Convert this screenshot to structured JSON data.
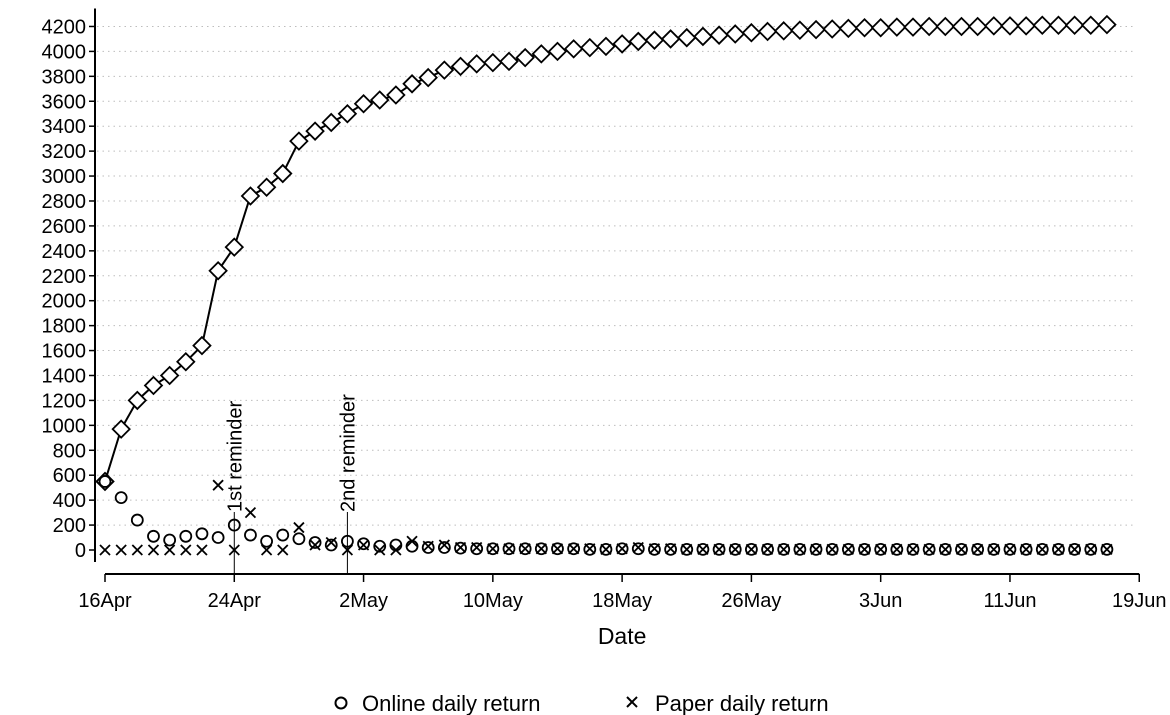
{
  "chart_data": {
    "type": "scatter",
    "title": "",
    "xlabel": "Date",
    "ylabel": "",
    "x_start": "2000-04-16",
    "xlim": [
      "16Apr",
      "19Jun"
    ],
    "ylim": [
      0,
      4200
    ],
    "grid": "horizontal dotted",
    "legend": "bottom",
    "x_ticks": [
      "16Apr",
      "24Apr",
      "2May",
      "10May",
      "18May",
      "26May",
      "3Jun",
      "11Jun",
      "19Jun"
    ],
    "y_ticks": [
      0,
      200,
      400,
      600,
      800,
      1000,
      1200,
      1400,
      1600,
      1800,
      2000,
      2200,
      2400,
      2600,
      2800,
      3000,
      3200,
      3400,
      3600,
      3800,
      4000,
      4200
    ],
    "annotations": [
      {
        "x": "24Apr",
        "text": "1st reminder"
      },
      {
        "x": "1May",
        "text": "2nd reminder"
      }
    ],
    "series": [
      {
        "name": "",
        "marker": "diamond",
        "line": true,
        "x": [
          "16Apr",
          "17Apr",
          "18Apr",
          "19Apr",
          "20Apr",
          "21Apr",
          "22Apr",
          "23Apr",
          "24Apr",
          "25Apr",
          "26Apr",
          "27Apr",
          "28Apr",
          "29Apr",
          "30Apr",
          "1May",
          "2May",
          "3May",
          "4May",
          "5May",
          "6May",
          "7May",
          "8May",
          "9May",
          "10May",
          "11May",
          "12May",
          "13May",
          "14May",
          "15May",
          "16May",
          "17May",
          "18May",
          "19May",
          "20May",
          "21May",
          "22May",
          "23May",
          "24May",
          "25May",
          "26May",
          "27May",
          "28May",
          "29May",
          "30May",
          "31May",
          "1Jun",
          "2Jun",
          "3Jun",
          "4Jun",
          "5Jun",
          "6Jun",
          "7Jun",
          "8Jun",
          "9Jun",
          "10Jun",
          "11Jun",
          "12Jun",
          "13Jun",
          "14Jun",
          "15Jun",
          "16Jun",
          "17Jun"
        ],
        "values": [
          550,
          970,
          1200,
          1320,
          1400,
          1510,
          1640,
          2240,
          2430,
          2840,
          2910,
          3020,
          3280,
          3360,
          3430,
          3500,
          3580,
          3610,
          3650,
          3740,
          3790,
          3850,
          3880,
          3900,
          3910,
          3920,
          3950,
          3980,
          4000,
          4020,
          4030,
          4040,
          4060,
          4080,
          4090,
          4100,
          4110,
          4120,
          4130,
          4140,
          4150,
          4160,
          4165,
          4170,
          4175,
          4180,
          4185,
          4190,
          4190,
          4195,
          4195,
          4200,
          4200,
          4200,
          4200,
          4205,
          4205,
          4205,
          4210,
          4210,
          4210,
          4210,
          4215
        ]
      },
      {
        "name": "Online daily return",
        "marker": "circle",
        "line": false,
        "x": [
          "16Apr",
          "17Apr",
          "18Apr",
          "19Apr",
          "20Apr",
          "21Apr",
          "22Apr",
          "23Apr",
          "24Apr",
          "25Apr",
          "26Apr",
          "27Apr",
          "28Apr",
          "29Apr",
          "30Apr",
          "1May",
          "2May",
          "3May",
          "4May",
          "5May",
          "6May",
          "7May",
          "8May",
          "9May",
          "10May",
          "11May",
          "12May",
          "13May",
          "14May",
          "15May",
          "16May",
          "17May",
          "18May",
          "19May",
          "20May",
          "21May",
          "22May",
          "23May",
          "24May",
          "25May",
          "26May",
          "27May",
          "28May",
          "29May",
          "30May",
          "31May",
          "1Jun",
          "2Jun",
          "3Jun",
          "4Jun",
          "5Jun",
          "6Jun",
          "7Jun",
          "8Jun",
          "9Jun",
          "10Jun",
          "11Jun",
          "12Jun",
          "13Jun",
          "14Jun",
          "15Jun",
          "16Jun",
          "17Jun"
        ],
        "values": [
          550,
          420,
          240,
          110,
          80,
          110,
          130,
          100,
          200,
          120,
          70,
          120,
          90,
          60,
          40,
          70,
          50,
          30,
          40,
          30,
          20,
          20,
          15,
          10,
          10,
          10,
          10,
          10,
          10,
          10,
          5,
          5,
          10,
          10,
          5,
          5,
          5,
          5,
          5,
          5,
          5,
          5,
          5,
          5,
          5,
          5,
          5,
          5,
          5,
          5,
          5,
          5,
          5,
          5,
          5,
          5,
          5,
          5,
          5,
          5,
          5,
          5,
          5
        ]
      },
      {
        "name": "Paper daily return",
        "marker": "x",
        "line": false,
        "x": [
          "16Apr",
          "17Apr",
          "18Apr",
          "19Apr",
          "20Apr",
          "21Apr",
          "22Apr",
          "23Apr",
          "24Apr",
          "25Apr",
          "26Apr",
          "27Apr",
          "28Apr",
          "29Apr",
          "30Apr",
          "1May",
          "2May",
          "3May",
          "4May",
          "5May",
          "6May",
          "7May",
          "8May",
          "9May",
          "10May",
          "11May",
          "12May",
          "13May",
          "14May",
          "15May",
          "16May",
          "17May",
          "18May",
          "19May",
          "20May",
          "21May",
          "22May",
          "23May",
          "24May",
          "25May",
          "26May",
          "27May",
          "28May",
          "29May",
          "30May",
          "31May",
          "1Jun",
          "2Jun",
          "3Jun",
          "4Jun",
          "5Jun",
          "6Jun",
          "7Jun",
          "8Jun",
          "9Jun",
          "10Jun",
          "11Jun",
          "12Jun",
          "13Jun",
          "14Jun",
          "15Jun",
          "16Jun",
          "17Jun"
        ],
        "values": [
          0,
          0,
          0,
          0,
          0,
          0,
          0,
          520,
          0,
          300,
          0,
          0,
          180,
          40,
          60,
          0,
          40,
          0,
          0,
          70,
          30,
          40,
          20,
          20,
          10,
          10,
          10,
          10,
          10,
          10,
          10,
          5,
          10,
          20,
          10,
          10,
          5,
          5,
          5,
          5,
          5,
          5,
          5,
          5,
          5,
          5,
          5,
          5,
          5,
          5,
          5,
          5,
          5,
          5,
          5,
          5,
          5,
          5,
          5,
          5,
          5,
          5,
          5
        ]
      }
    ]
  }
}
